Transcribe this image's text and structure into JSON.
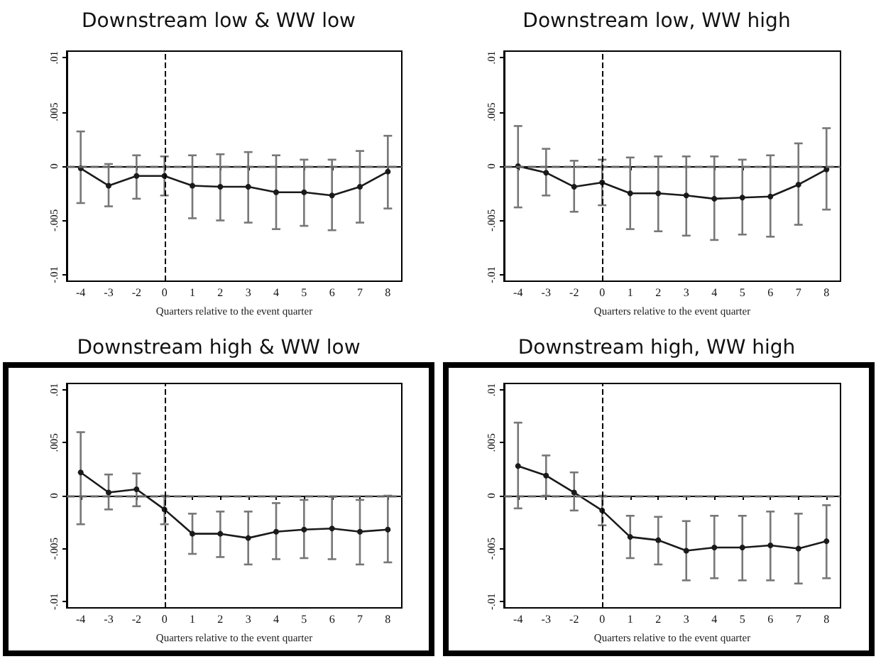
{
  "chart_data": [
    {
      "type": "line",
      "title": "Downstream low & WW low",
      "xlabel": "Quarters relative to the event quarter",
      "categories": [
        "-4",
        "-3",
        "-2",
        "0",
        "1",
        "2",
        "3",
        "4",
        "5",
        "6",
        "7",
        "8"
      ],
      "marker": "circle",
      "line_style": "solid",
      "grid": false,
      "ylim": [
        -0.0106,
        0.0106
      ],
      "yticks": [
        {
          "value": -0.01,
          "label": "-.01"
        },
        {
          "value": -0.005,
          "label": "-.005"
        },
        {
          "value": 0,
          "label": "0"
        },
        {
          "value": 0.005,
          "label": ".005"
        },
        {
          "value": 0.01,
          "label": ".01"
        }
      ],
      "ref_lines": [
        {
          "axis": "y",
          "value": 0,
          "color": "#666666",
          "line_style": "dashed"
        },
        {
          "axis": "x",
          "value": "0",
          "color": "#000000",
          "line_style": "dashed"
        }
      ],
      "series": [
        {
          "color": "#1a1a1a",
          "values": [
            -0.0002,
            -0.0018,
            -0.0009,
            -0.0009,
            -0.0018,
            -0.0019,
            -0.0019,
            -0.0024,
            -0.0024,
            -0.0027,
            -0.0019,
            -0.0005
          ],
          "errors": [
            [
              -0.0034,
              0.0032
            ],
            [
              -0.0037,
              0.0002
            ],
            [
              -0.003,
              0.001
            ],
            [
              -0.0027,
              0.0009
            ],
            [
              -0.0048,
              0.001
            ],
            [
              -0.005,
              0.0011
            ],
            [
              -0.0052,
              0.0013
            ],
            [
              -0.0058,
              0.001
            ],
            [
              -0.0055,
              0.0006
            ],
            [
              -0.0059,
              0.0006
            ],
            [
              -0.0052,
              0.0014
            ],
            [
              -0.0039,
              0.0028
            ]
          ]
        }
      ]
    },
    {
      "type": "line",
      "title": "Downstream low, WW high",
      "xlabel": "Quarters relative to the event quarter",
      "categories": [
        "-4",
        "-3",
        "-2",
        "0",
        "1",
        "2",
        "3",
        "4",
        "5",
        "6",
        "7",
        "8"
      ],
      "marker": "circle",
      "line_style": "solid",
      "grid": false,
      "ylim": [
        -0.0106,
        0.0106
      ],
      "yticks": [
        {
          "value": -0.01,
          "label": "-.01"
        },
        {
          "value": -0.005,
          "label": "-.005"
        },
        {
          "value": 0,
          "label": "0"
        },
        {
          "value": 0.005,
          "label": ".005"
        },
        {
          "value": 0.01,
          "label": ".01"
        }
      ],
      "ref_lines": [
        {
          "axis": "y",
          "value": 0,
          "color": "#666666",
          "line_style": "dashed"
        },
        {
          "axis": "x",
          "value": "0",
          "color": "#000000",
          "line_style": "dashed"
        }
      ],
      "series": [
        {
          "color": "#1a1a1a",
          "values": [
            0,
            -0.0006,
            -0.0019,
            -0.0015,
            -0.0025,
            -0.0025,
            -0.0027,
            -0.003,
            -0.0029,
            -0.0028,
            -0.0017,
            -0.0003
          ],
          "errors": [
            [
              -0.0038,
              0.0037
            ],
            [
              -0.0027,
              0.0016
            ],
            [
              -0.0042,
              0.0005
            ],
            [
              -0.0036,
              0.0006
            ],
            [
              -0.0058,
              0.0008
            ],
            [
              -0.006,
              0.0009
            ],
            [
              -0.0064,
              0.0009
            ],
            [
              -0.0068,
              0.0009
            ],
            [
              -0.0063,
              0.0006
            ],
            [
              -0.0065,
              0.001
            ],
            [
              -0.0054,
              0.0021
            ],
            [
              -0.004,
              0.0035
            ]
          ]
        }
      ]
    },
    {
      "type": "line",
      "title": "Downstream high & WW low",
      "xlabel": "Quarters relative to the event quarter",
      "categories": [
        "-4",
        "-3",
        "-2",
        "0",
        "1",
        "2",
        "3",
        "4",
        "5",
        "6",
        "7",
        "8"
      ],
      "marker": "circle",
      "line_style": "solid",
      "grid": false,
      "ylim": [
        -0.0106,
        0.0106
      ],
      "yticks": [
        {
          "value": -0.01,
          "label": "-.01"
        },
        {
          "value": -0.005,
          "label": "-.005"
        },
        {
          "value": 0,
          "label": "0"
        },
        {
          "value": 0.005,
          "label": ".005"
        },
        {
          "value": 0.01,
          "label": ".01"
        }
      ],
      "ref_lines": [
        {
          "axis": "y",
          "value": 0,
          "color": "#666666",
          "line_style": "dashed"
        },
        {
          "axis": "x",
          "value": "0",
          "color": "#000000",
          "line_style": "dashed"
        }
      ],
      "series": [
        {
          "color": "#1a1a1a",
          "values": [
            0.0022,
            0.0003,
            0.0006,
            -0.0013,
            -0.0036,
            -0.0036,
            -0.004,
            -0.0034,
            -0.0032,
            -0.0031,
            -0.0034,
            -0.0032
          ],
          "errors": [
            [
              -0.0027,
              0.006
            ],
            [
              -0.0013,
              0.002
            ],
            [
              -0.001,
              0.0021
            ],
            [
              -0.0027,
              0
            ],
            [
              -0.0055,
              -0.0017
            ],
            [
              -0.0058,
              -0.0015
            ],
            [
              -0.0065,
              -0.0015
            ],
            [
              -0.006,
              -0.0007
            ],
            [
              -0.0059,
              -0.0004
            ],
            [
              -0.006,
              -0.0001
            ],
            [
              -0.0065,
              -0.0004
            ],
            [
              -0.0063,
              0
            ]
          ]
        }
      ]
    },
    {
      "type": "line",
      "title": "Downstream high, WW high",
      "xlabel": "Quarters relative to the event quarter",
      "categories": [
        "-4",
        "-3",
        "-2",
        "0",
        "1",
        "2",
        "3",
        "4",
        "5",
        "6",
        "7",
        "8"
      ],
      "marker": "circle",
      "line_style": "solid",
      "grid": false,
      "ylim": [
        -0.0106,
        0.0106
      ],
      "yticks": [
        {
          "value": -0.01,
          "label": "-.01"
        },
        {
          "value": -0.005,
          "label": "-.005"
        },
        {
          "value": 0,
          "label": "0"
        },
        {
          "value": 0.005,
          "label": ".005"
        },
        {
          "value": 0.01,
          "label": ".01"
        }
      ],
      "ref_lines": [
        {
          "axis": "y",
          "value": 0,
          "color": "#666666",
          "line_style": "dashed"
        },
        {
          "axis": "x",
          "value": "0",
          "color": "#000000",
          "line_style": "dashed"
        }
      ],
      "series": [
        {
          "color": "#1a1a1a",
          "values": [
            0.0028,
            0.0019,
            0.0003,
            -0.0014,
            -0.0039,
            -0.0042,
            -0.0052,
            -0.0049,
            -0.0049,
            -0.0047,
            -0.005,
            -0.0043
          ],
          "errors": [
            [
              -0.0012,
              0.0069
            ],
            [
              0,
              0.0038
            ],
            [
              -0.0014,
              0.0022
            ],
            [
              -0.0028,
              0
            ],
            [
              -0.0059,
              -0.0019
            ],
            [
              -0.0065,
              -0.002
            ],
            [
              -0.008,
              -0.0024
            ],
            [
              -0.0078,
              -0.0019
            ],
            [
              -0.008,
              -0.0019
            ],
            [
              -0.008,
              -0.0015
            ],
            [
              -0.0083,
              -0.0017
            ],
            [
              -0.0078,
              -0.0009
            ]
          ]
        }
      ]
    }
  ]
}
